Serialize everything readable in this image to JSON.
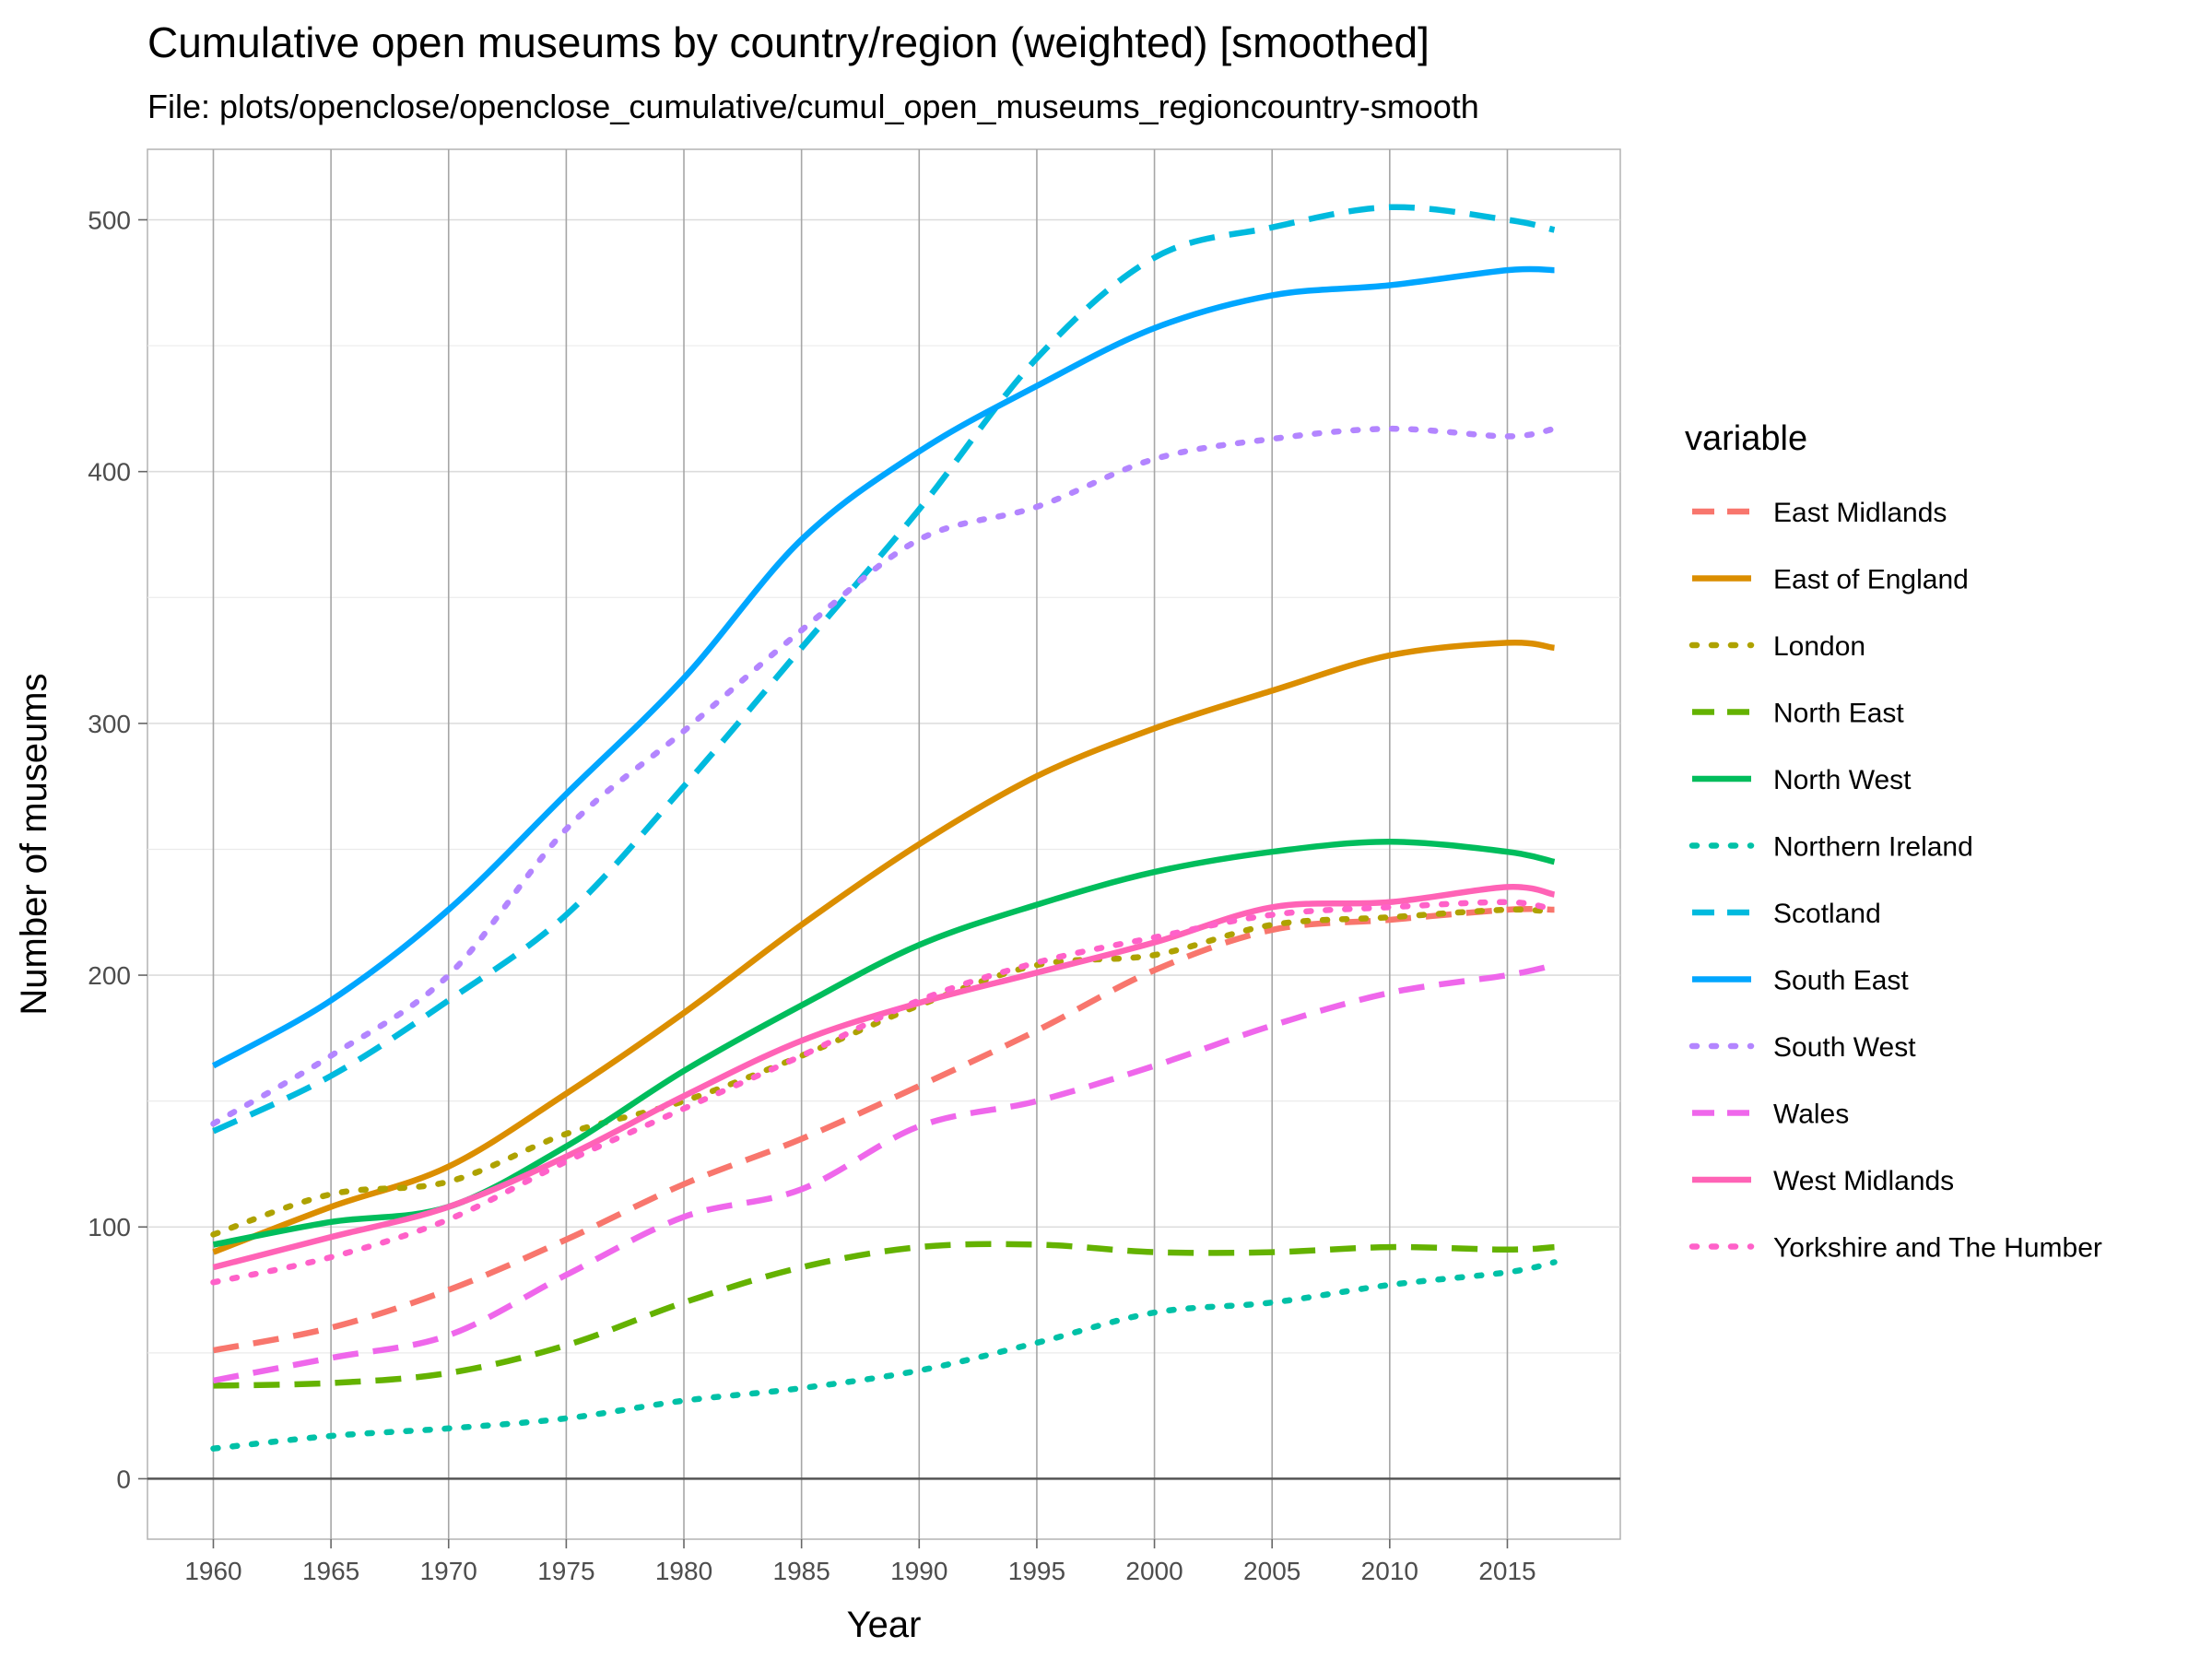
{
  "chart_data": {
    "type": "line",
    "title": "Cumulative open museums by country/region (weighted) [smoothed]",
    "subtitle": "File: plots/openclose/openclose_cumulative/cumul_open_museums_regioncountry-smooth",
    "xlabel": "Year",
    "ylabel": "Number of museums",
    "xlim": [
      1957.2,
      2019.8
    ],
    "ylim": [
      -24,
      528
    ],
    "x_ticks": [
      1960,
      1965,
      1970,
      1975,
      1980,
      1985,
      1990,
      1995,
      2000,
      2005,
      2010,
      2015
    ],
    "x_tick_labels": [
      "1960",
      "1965",
      "1970",
      "1975",
      "1980",
      "1985",
      "1990",
      "1995",
      "2000",
      "2005",
      "2010",
      "2015"
    ],
    "y_ticks": [
      0,
      100,
      200,
      300,
      400,
      500
    ],
    "y_tick_labels": [
      "0",
      "100",
      "200",
      "300",
      "400",
      "500"
    ],
    "grid": true,
    "legend": {
      "title": "variable",
      "position": "right"
    },
    "x": [
      1960,
      1965,
      1970,
      1975,
      1980,
      1985,
      1990,
      1995,
      2000,
      2005,
      2010,
      2015,
      2017
    ],
    "series": [
      {
        "name": "East Midlands",
        "color": "#F8766D",
        "dash": "long",
        "values": [
          51,
          60,
          75,
          95,
          117,
          135,
          156,
          178,
          202,
          218,
          222,
          226,
          226
        ]
      },
      {
        "name": "East of England",
        "color": "#DB8E00",
        "dash": "solid",
        "values": [
          90,
          108,
          124,
          153,
          185,
          220,
          252,
          279,
          298,
          313,
          327,
          332,
          330
        ]
      },
      {
        "name": "London",
        "color": "#AEA200",
        "dash": "dot",
        "values": [
          97,
          113,
          118,
          137,
          150,
          168,
          188,
          204,
          208,
          220,
          223,
          226,
          225
        ]
      },
      {
        "name": "North East",
        "color": "#64B200",
        "dash": "long",
        "values": [
          37,
          38,
          42,
          53,
          70,
          84,
          92,
          93,
          90,
          90,
          92,
          91,
          92
        ]
      },
      {
        "name": "North West",
        "color": "#00BD5C",
        "dash": "solid",
        "values": [
          93,
          102,
          108,
          132,
          162,
          188,
          212,
          228,
          241,
          249,
          253,
          249,
          245
        ]
      },
      {
        "name": "Northern Ireland",
        "color": "#00C1A7",
        "dash": "dot",
        "values": [
          12,
          17,
          20,
          24,
          31,
          36,
          43,
          54,
          66,
          70,
          77,
          82,
          86
        ]
      },
      {
        "name": "Scotland",
        "color": "#00BADE",
        "dash": "long",
        "values": [
          138,
          160,
          190,
          224,
          275,
          330,
          385,
          445,
          485,
          497,
          505,
          500,
          496
        ]
      },
      {
        "name": "South East",
        "color": "#00A6FF",
        "dash": "solid",
        "values": [
          164,
          190,
          226,
          272,
          318,
          373,
          408,
          434,
          457,
          470,
          474,
          480,
          480
        ]
      },
      {
        "name": "South West",
        "color": "#B385FF",
        "dash": "dot",
        "values": [
          141,
          168,
          200,
          258,
          297,
          337,
          373,
          386,
          405,
          413,
          417,
          414,
          417
        ]
      },
      {
        "name": "Wales",
        "color": "#EF67EB",
        "dash": "long",
        "values": [
          39,
          48,
          57,
          81,
          104,
          115,
          140,
          150,
          164,
          180,
          193,
          200,
          204
        ]
      },
      {
        "name": "West Midlands",
        "color": "#FF63B6",
        "dash": "solid",
        "values": [
          84,
          96,
          108,
          128,
          152,
          174,
          189,
          201,
          213,
          227,
          229,
          235,
          232
        ]
      },
      {
        "name": "Yorkshire and The Humber",
        "color": "#FF61C9",
        "dash": "dot",
        "values": [
          78,
          88,
          103,
          126,
          147,
          168,
          190,
          205,
          215,
          224,
          227,
          229,
          226
        ]
      }
    ]
  }
}
